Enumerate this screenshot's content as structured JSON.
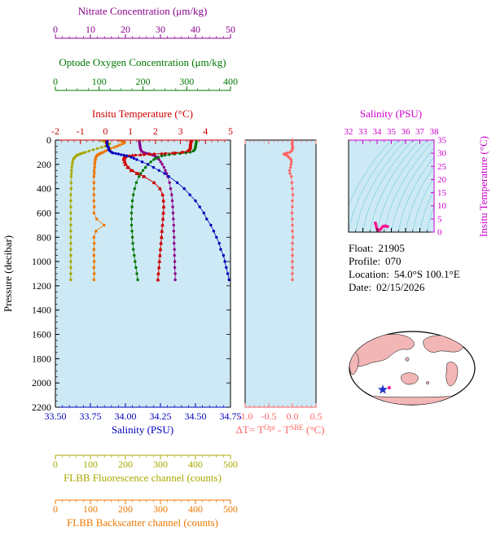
{
  "colors": {
    "nitrate": "#8b008b",
    "oxygen": "#007700",
    "temperature": "#cc0000",
    "salinity": "#0000bb",
    "pressure": "#000000",
    "fluorescence": "#a8a800",
    "backscatter": "#ee7700",
    "magenta": "#cc00cc",
    "ts_curve": "#ff1493",
    "delta": "#ff6666",
    "panel_bg": "#cde9f5",
    "contour": "#7fcfe0",
    "land": "#f2b6b6",
    "ocean": "#ffffff",
    "star": "#2233cc"
  },
  "info": {
    "lines": [
      {
        "label": "Float:",
        "value": "21905"
      },
      {
        "label": "Profile:",
        "value": "070"
      },
      {
        "label": "Location:",
        "value": "54.0°S  100.1°E"
      },
      {
        "label": "Date:",
        "value": "02/15/2026"
      }
    ]
  },
  "chart_data": {
    "type": "line",
    "axes": {
      "nitrate": {
        "title": "Nitrate Concentration (μm/kg)",
        "min": 0,
        "max": 50,
        "tick_labels": [
          "0",
          "10",
          "20",
          "30",
          "40",
          "50"
        ]
      },
      "oxygen": {
        "title": "Optode Oxygen Concentration (μm/kg)",
        "min": 0,
        "max": 400,
        "tick_labels": [
          "0",
          "100",
          "200",
          "300",
          "400"
        ]
      },
      "temperature": {
        "title": "Insitu Temperature (°C)",
        "min": -2,
        "max": 5,
        "tick_labels": [
          "-2",
          "-1",
          "0",
          "1",
          "2",
          "3",
          "4",
          "5"
        ]
      },
      "pressure": {
        "title": "Pressure (decibar)",
        "min": 0,
        "max": 2200,
        "tick_labels": [
          "0",
          "200",
          "400",
          "600",
          "800",
          "1000",
          "1200",
          "1400",
          "1600",
          "1800",
          "2000",
          "2200"
        ]
      },
      "salinity": {
        "title": "Salinity (PSU)",
        "min": 33.5,
        "max": 34.75,
        "tick_labels": [
          "33.50",
          "33.75",
          "34.00",
          "34.25",
          "34.50",
          "34.75"
        ]
      },
      "delta_t": {
        "title": "ΔT= TOpt - TSBE (°C)",
        "title_parts": [
          "ΔT= T",
          "Opt",
          " - T",
          "SBE",
          " (°C)"
        ],
        "min": -1.0,
        "max": 0.5,
        "tick_labels": [
          "-1.0",
          "-0.5",
          "0.0",
          "0.5"
        ]
      },
      "ts_salinity": {
        "title": "Salinity (PSU)",
        "min": 32,
        "max": 38,
        "fs": 11,
        "tick_labels": [
          "32",
          "33",
          "34",
          "35",
          "36",
          "37",
          "38"
        ]
      },
      "ts_temperature": {
        "title": "Insitu Temperature (°C)",
        "min": 0,
        "max": 35,
        "fs": 11,
        "tick_labels": [
          "0",
          "5",
          "10",
          "15",
          "20",
          "25",
          "30",
          "35"
        ]
      },
      "fluorescence": {
        "title": "FLBB Fluorescence channel (counts)",
        "min": 0,
        "max": 500,
        "tick_labels": [
          "0",
          "100",
          "200",
          "300",
          "400",
          "500"
        ]
      },
      "backscatter": {
        "title": "FLBB Backscatter channel (counts)",
        "min": 0,
        "max": 500,
        "tick_labels": [
          "0",
          "100",
          "200",
          "300",
          "400",
          "500"
        ]
      }
    },
    "profiles": {
      "pressure_dbar": [
        0,
        10,
        20,
        30,
        40,
        50,
        60,
        70,
        80,
        90,
        100,
        105,
        110,
        115,
        120,
        125,
        130,
        140,
        150,
        160,
        180,
        200,
        225,
        250,
        275,
        300,
        350,
        400,
        450,
        500,
        550,
        600,
        650,
        700,
        750,
        800,
        850,
        900,
        950,
        1000,
        1050,
        1100,
        1150
      ],
      "salinity_psu": [
        33.87,
        33.87,
        33.87,
        33.87,
        33.87,
        33.87,
        33.88,
        33.88,
        33.88,
        33.89,
        33.9,
        33.91,
        33.93,
        33.95,
        33.97,
        33.99,
        34.01,
        34.04,
        34.06,
        34.08,
        34.12,
        34.16,
        34.2,
        34.24,
        34.28,
        34.31,
        34.37,
        34.42,
        34.46,
        34.5,
        34.53,
        34.56,
        34.58,
        34.61,
        34.63,
        34.65,
        34.67,
        34.68,
        34.7,
        34.71,
        34.72,
        34.73,
        34.74
      ],
      "temperature_c": [
        3.42,
        3.42,
        3.41,
        3.41,
        3.4,
        3.4,
        3.39,
        3.38,
        3.36,
        3.3,
        3.1,
        2.8,
        2.4,
        1.95,
        1.55,
        1.2,
        0.95,
        0.82,
        0.78,
        0.76,
        0.78,
        0.82,
        0.92,
        1.08,
        1.3,
        1.55,
        1.95,
        2.18,
        2.28,
        2.32,
        2.33,
        2.32,
        2.3,
        2.28,
        2.26,
        2.24,
        2.22,
        2.2,
        2.18,
        2.16,
        2.14,
        2.12,
        2.1
      ],
      "delta_t_c": [
        0,
        0,
        0,
        -0.01,
        0,
        0,
        0.01,
        0,
        0,
        -0.02,
        -0.05,
        -0.1,
        -0.15,
        -0.18,
        -0.15,
        -0.12,
        -0.1,
        -0.08,
        -0.05,
        -0.03,
        -0.02,
        -0.03,
        -0.04,
        -0.06,
        -0.05,
        -0.02,
        -0.01,
        0,
        0.01,
        0,
        0,
        -0.01,
        0,
        0,
        0,
        0.01,
        0,
        0,
        0,
        0,
        0,
        0,
        0
      ],
      "oxygen_umol_kg": [
        322,
        322,
        322,
        321,
        321,
        320,
        320,
        319,
        318,
        315,
        308,
        298,
        285,
        272,
        260,
        250,
        243,
        235,
        229,
        225,
        218,
        212,
        206,
        200,
        195,
        191,
        185,
        181,
        178,
        176,
        175,
        174,
        174,
        174,
        175,
        176,
        177,
        178,
        180,
        182,
        184,
        186,
        188
      ],
      "nitrate_umol_kg": [
        24.0,
        24.0,
        24.0,
        24.1,
        24.1,
        24.2,
        24.2,
        24.3,
        24.4,
        24.6,
        25.0,
        25.5,
        26.2,
        26.9,
        27.5,
        28.0,
        28.4,
        28.9,
        29.3,
        29.6,
        30.1,
        30.5,
        31.0,
        31.4,
        31.8,
        32.1,
        32.6,
        32.9,
        33.2,
        33.4,
        33.5,
        33.6,
        33.7,
        33.8,
        33.8,
        33.9,
        33.9,
        34.0,
        34.0,
        34.1,
        34.1,
        34.2,
        34.2
      ],
      "fluorescence_counts": [
        130,
        138,
        148,
        155,
        150,
        142,
        132,
        120,
        108,
        96,
        86,
        80,
        74,
        70,
        66,
        62,
        59,
        56,
        53,
        51,
        49,
        48,
        47,
        46,
        46,
        45,
        45,
        45,
        44,
        44,
        44,
        44,
        44,
        44,
        44,
        44,
        44,
        44,
        44,
        44,
        44,
        44,
        44
      ],
      "backscatter_counts": [
        182,
        190,
        198,
        192,
        184,
        176,
        168,
        158,
        150,
        143,
        137,
        132,
        128,
        125,
        122,
        120,
        118,
        116,
        115,
        114,
        113,
        112,
        112,
        111,
        111,
        110,
        110,
        110,
        110,
        110,
        111,
        110,
        118,
        139,
        116,
        110,
        111,
        110,
        110,
        111,
        110,
        111,
        110
      ]
    }
  }
}
